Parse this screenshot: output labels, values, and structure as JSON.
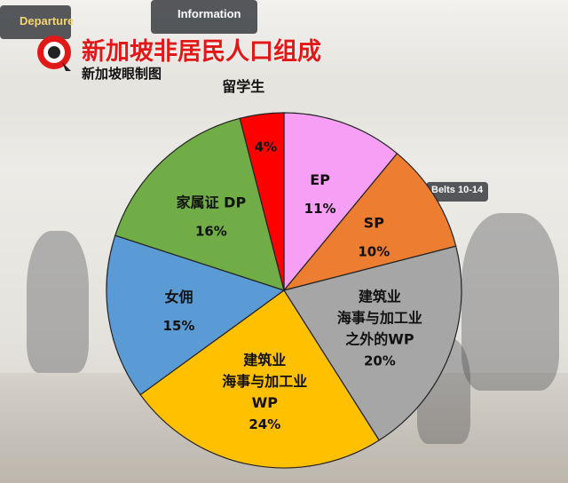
{
  "header": {
    "title": "新加坡非居民人口组成",
    "subtitle": "新加坡眼制图"
  },
  "background": {
    "sign_departure": "Departure",
    "sign_information": "Information",
    "sign_belts": "Belts 10-14"
  },
  "chart_data": {
    "type": "pie",
    "title": "新加坡非居民人口组成",
    "start_angle_deg": 0,
    "direction": "clockwise",
    "slices": [
      {
        "lines": [
          "EP"
        ],
        "value": 11,
        "value_label": "11%",
        "color": "#f79ef5"
      },
      {
        "lines": [
          "SP"
        ],
        "value": 10,
        "value_label": "10%",
        "color": "#ed7d31"
      },
      {
        "lines": [
          "建筑业",
          "海事与加工业",
          "之外的WP"
        ],
        "value": 20,
        "value_label": "20%",
        "color": "#a6a6a6"
      },
      {
        "lines": [
          "建筑业",
          "海事与加工业",
          "WP"
        ],
        "value": 24,
        "value_label": "24%",
        "color": "#ffc000"
      },
      {
        "lines": [
          "女佣"
        ],
        "value": 15,
        "value_label": "15%",
        "color": "#5b9bd5"
      },
      {
        "lines": [
          "家属证 DP"
        ],
        "value": 16,
        "value_label": "16%",
        "color": "#70ad47"
      },
      {
        "lines": [
          "留学生"
        ],
        "value": 4,
        "value_label": "4%",
        "color": "#ff0000",
        "label_outside": true
      }
    ]
  }
}
